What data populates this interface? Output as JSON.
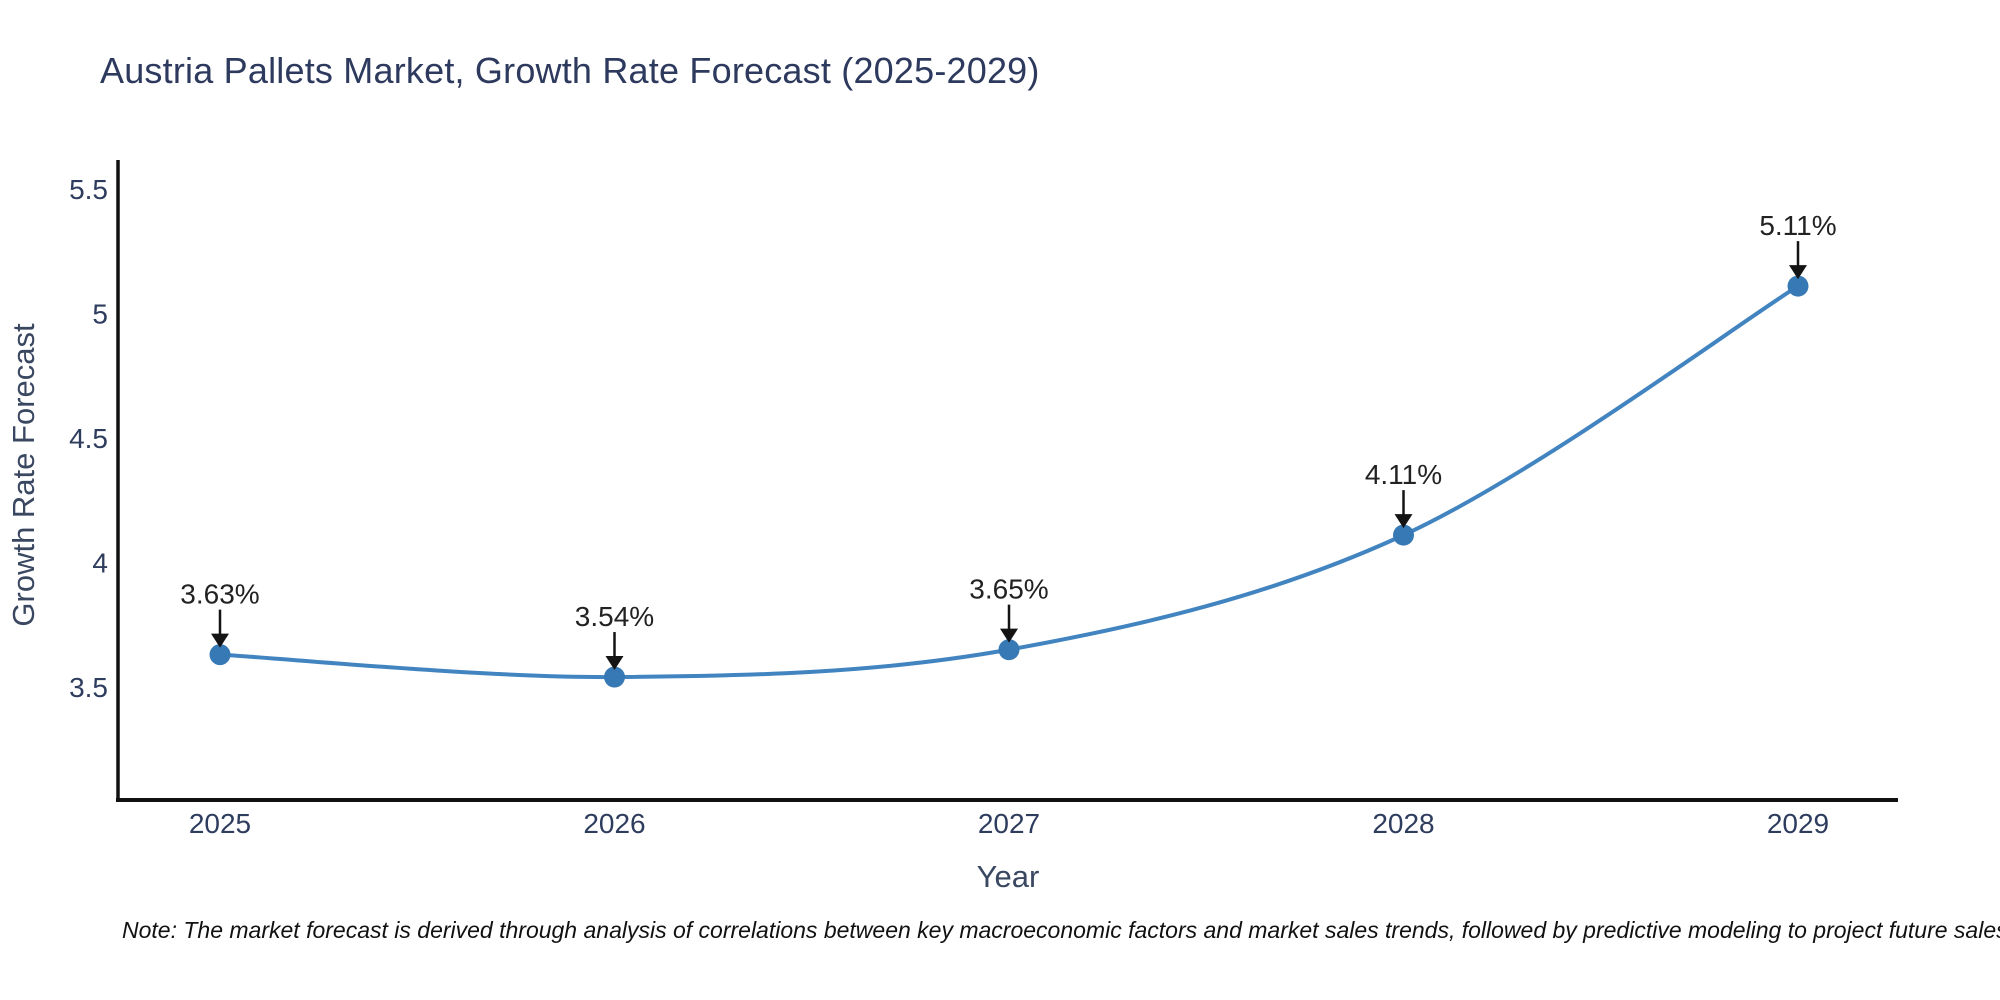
{
  "title": "Austria Pallets Market, Growth Rate Forecast (2025-2029)",
  "note": "Note: The market forecast is derived through analysis of correlations between key macroeconomic factors and market sales trends, followed by predictive modeling to project future sales",
  "chart_data": {
    "type": "line",
    "title": "Austria Pallets Market, Growth Rate Forecast (2025-2029)",
    "xlabel": "Year",
    "ylabel": "Growth Rate Forecast",
    "x": [
      2025,
      2026,
      2027,
      2028,
      2029
    ],
    "series": [
      {
        "name": "Growth Rate Forecast",
        "values": [
          3.63,
          3.54,
          3.65,
          4.11,
          5.11
        ]
      }
    ],
    "point_labels": [
      "3.63%",
      "3.54%",
      "3.65%",
      "4.11%",
      "5.11%"
    ],
    "yticks": [
      3.5,
      4,
      4.5,
      5,
      5.5
    ],
    "ylim": [
      3.05,
      5.62
    ],
    "line_shape": "spline",
    "grid": false,
    "legend": false,
    "colors": {
      "line": "#4184c0",
      "marker": "#3779b5",
      "axis": "#111111",
      "tick_text": "#2e3c5e",
      "annotation_text": "#222222",
      "arrow": "#141414"
    }
  }
}
